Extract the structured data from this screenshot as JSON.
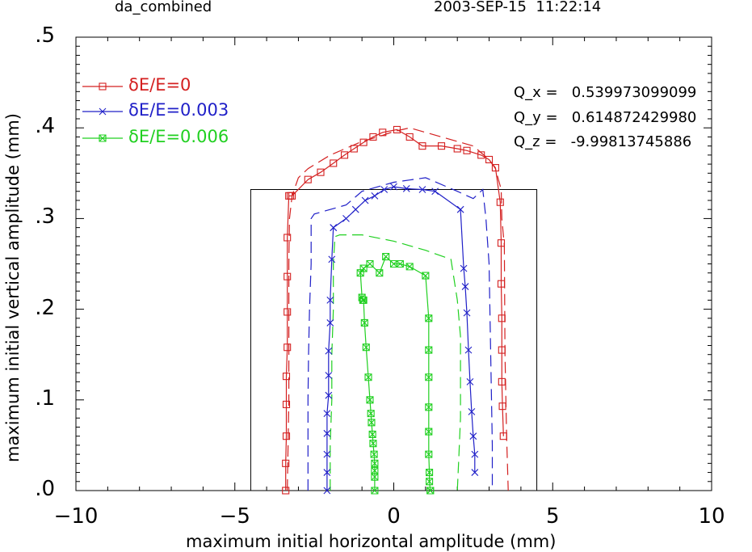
{
  "header": {
    "left": "da_combined",
    "right": "2003-SEP-15  11:22:14"
  },
  "qvalues": [
    "Q_x =   0.539973099099",
    "Q_y =   0.614872429980",
    "Q_z =   -9.99813745886"
  ],
  "chart_data": {
    "type": "line",
    "xlabel": "maximum initial horizontal amplitude (mm)",
    "ylabel": "maximum initial vertical amplitude (mm)",
    "xlim": [
      -10,
      10
    ],
    "ylim": [
      0,
      0.5
    ],
    "xticks": [
      "−10",
      "−5",
      "0",
      "5",
      "10"
    ],
    "yticks": [
      ".0",
      ".1",
      ".2",
      ".3",
      ".4",
      ".5"
    ],
    "box": {
      "x": [
        -4.5,
        4.5
      ],
      "y": [
        0,
        0.332
      ]
    },
    "legend": [
      "δE/E=0",
      "δE/E=0.003",
      "δE/E=0.006"
    ],
    "series": [
      {
        "name": "δE/E=0",
        "color": "#d42020",
        "marker": "square",
        "x": [
          -3.4,
          -3.4,
          -3.38,
          -3.38,
          -3.38,
          -3.35,
          -3.35,
          -3.35,
          -3.35,
          -3.3,
          -3.25,
          -3.2,
          -2.7,
          -2.3,
          -1.9,
          -1.55,
          -1.25,
          -0.95,
          -0.65,
          -0.35,
          0.1,
          0.5,
          0.9,
          1.5,
          2.0,
          2.3,
          2.75,
          3.0,
          3.2,
          3.35,
          3.38,
          3.38,
          3.4,
          3.4,
          3.4,
          3.42,
          3.45
        ],
        "y": [
          0.0,
          0.03,
          0.06,
          0.095,
          0.126,
          0.158,
          0.197,
          0.236,
          0.279,
          0.325,
          0.325,
          0.325,
          0.343,
          0.351,
          0.361,
          0.37,
          0.377,
          0.384,
          0.39,
          0.395,
          0.398,
          0.39,
          0.38,
          0.38,
          0.377,
          0.375,
          0.37,
          0.365,
          0.356,
          0.318,
          0.273,
          0.228,
          0.19,
          0.155,
          0.12,
          0.093,
          0.06
        ]
      },
      {
        "name": "δE/E=0.003",
        "color": "#2020c8",
        "marker": "x",
        "x": [
          -2.1,
          -2.1,
          -2.1,
          -2.1,
          -2.1,
          -2.05,
          -2.05,
          -2.05,
          -2.0,
          -2.0,
          -1.95,
          -1.9,
          -1.9,
          -1.5,
          -1.2,
          -0.9,
          -0.6,
          -0.3,
          0.0,
          0.4,
          0.9,
          1.3,
          2.1,
          2.2,
          2.25,
          2.3,
          2.35,
          2.4,
          2.45,
          2.5,
          2.55,
          2.55
        ],
        "y": [
          0.0,
          0.02,
          0.04,
          0.063,
          0.085,
          0.105,
          0.127,
          0.154,
          0.185,
          0.21,
          0.255,
          0.29,
          0.29,
          0.3,
          0.31,
          0.32,
          0.325,
          0.332,
          0.335,
          0.333,
          0.332,
          0.33,
          0.31,
          0.245,
          0.225,
          0.196,
          0.155,
          0.12,
          0.087,
          0.06,
          0.04,
          0.02
        ]
      },
      {
        "name": "δE/E=0.006",
        "color": "#20d020",
        "marker": "boxx",
        "x": [
          -0.6,
          -0.6,
          -0.6,
          -0.6,
          -0.62,
          -0.65,
          -0.67,
          -0.7,
          -0.72,
          -0.75,
          -0.8,
          -0.87,
          -0.92,
          -0.95,
          -0.97,
          -1.0,
          -1.05,
          -0.95,
          -0.75,
          -0.45,
          -0.25,
          0.0,
          0.2,
          0.5,
          1.0,
          1.1,
          1.1,
          1.1,
          1.1,
          1.1,
          1.1,
          1.12,
          1.12,
          1.15,
          1.15
        ],
        "y": [
          0.0,
          0.015,
          0.022,
          0.03,
          0.04,
          0.052,
          0.062,
          0.075,
          0.085,
          0.1,
          0.125,
          0.158,
          0.185,
          0.21,
          0.21,
          0.213,
          0.24,
          0.245,
          0.25,
          0.24,
          0.258,
          0.25,
          0.25,
          0.247,
          0.237,
          0.19,
          0.155,
          0.125,
          0.092,
          0.065,
          0.04,
          0.02,
          0.01,
          0.0,
          0.0
        ]
      }
    ],
    "dashed_series": [
      {
        "color": "#d42020",
        "x": [
          -3.35,
          -3.3,
          -3.3,
          -3.3,
          -3.28,
          -3.2,
          -3.0,
          -2.7,
          -2.0,
          -1.0,
          -0.5,
          0.0,
          0.5,
          1.5,
          2.5,
          3.0,
          3.2,
          3.38,
          3.4,
          3.48,
          3.5,
          3.55,
          3.6
        ],
        "y": [
          0.0,
          0.1,
          0.2,
          0.25,
          0.3,
          0.325,
          0.345,
          0.355,
          0.37,
          0.385,
          0.39,
          0.396,
          0.4,
          0.39,
          0.38,
          0.365,
          0.355,
          0.332,
          0.3,
          0.27,
          0.15,
          0.06,
          0.0
        ]
      },
      {
        "color": "#2020c8",
        "x": [
          -2.7,
          -2.7,
          -2.68,
          -2.65,
          -2.6,
          -2.6,
          -2.5,
          -2.0,
          -1.5,
          -1.0,
          0.0,
          1.0,
          2.0,
          2.5,
          2.8,
          2.9,
          3.0,
          3.05,
          3.1,
          3.1
        ],
        "y": [
          0.0,
          0.1,
          0.15,
          0.2,
          0.25,
          0.3,
          0.305,
          0.31,
          0.315,
          0.33,
          0.34,
          0.345,
          0.33,
          0.322,
          0.332,
          0.3,
          0.25,
          0.15,
          0.05,
          0.0
        ]
      },
      {
        "color": "#20d020",
        "x": [
          -2.0,
          -2.0,
          -1.95,
          -1.95,
          -1.9,
          -1.9,
          -1.85,
          -1.7,
          -1.0,
          0.0,
          1.0,
          1.8,
          2.0,
          2.1,
          2.1,
          2.1,
          2.05,
          2.0
        ],
        "y": [
          0.0,
          0.05,
          0.1,
          0.15,
          0.2,
          0.25,
          0.28,
          0.282,
          0.282,
          0.275,
          0.265,
          0.255,
          0.21,
          0.17,
          0.13,
          0.08,
          0.04,
          0.0
        ]
      }
    ]
  }
}
